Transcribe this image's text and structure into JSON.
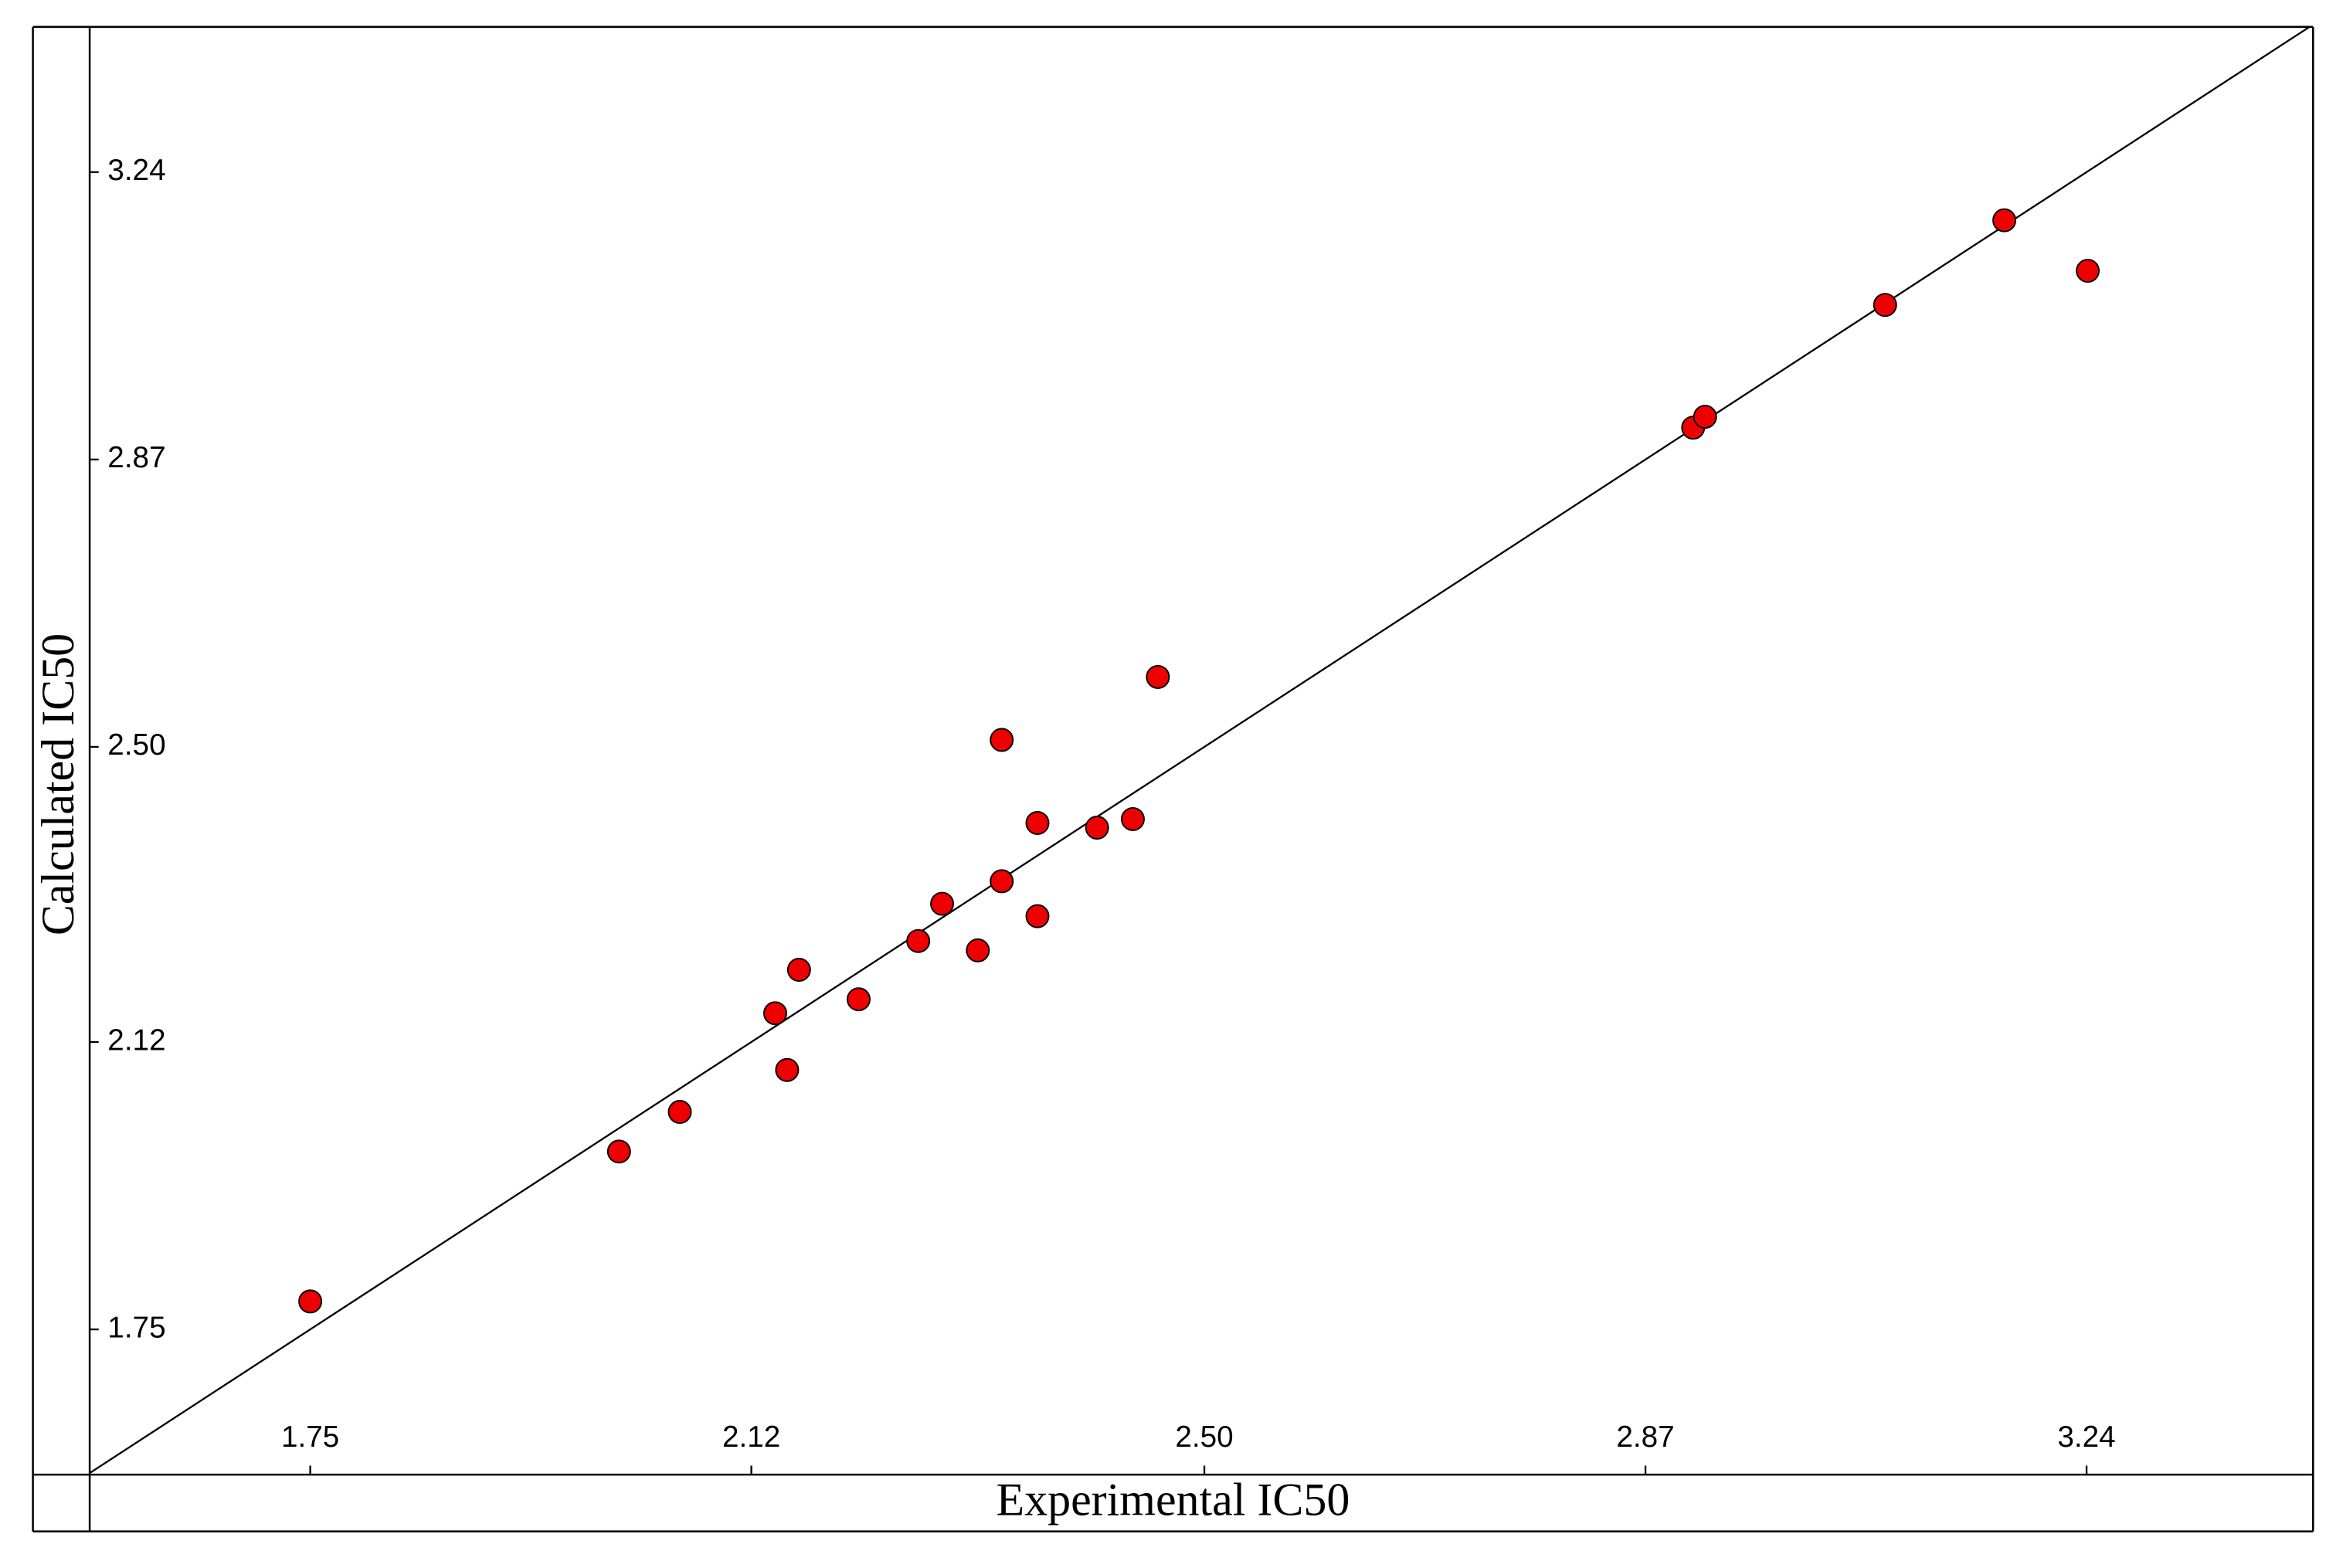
{
  "chart_data": {
    "type": "scatter",
    "x_label": "Experimental IC50",
    "y_label": "Calculated IC50",
    "x": [
      1.75,
      2.009,
      2.06,
      2.14,
      2.15,
      2.16,
      2.21,
      2.26,
      2.28,
      2.31,
      2.33,
      2.36,
      2.36,
      2.33,
      2.41,
      2.44,
      2.461,
      2.91,
      2.92,
      3.071,
      3.171,
      3.241
    ],
    "values": [
      1.786,
      1.979,
      2.03,
      2.157,
      2.084,
      2.213,
      2.175,
      2.25,
      2.298,
      2.238,
      2.327,
      2.282,
      2.402,
      2.509,
      2.396,
      2.407,
      2.59,
      2.911,
      2.925,
      3.069,
      3.178,
      3.113
    ],
    "color": "#ee0000",
    "xlim": [
      1.565,
      3.43
    ],
    "ylim": [
      1.563,
      3.427
    ],
    "xticks": [
      1.75,
      2.12,
      {
        "value": 2.5,
        "label": "2.50"
      },
      2.87,
      3.24
    ],
    "yticks": [
      1.75,
      2.12,
      {
        "value": 2.5,
        "label": "2.50"
      },
      2.87,
      3.24
    ]
  }
}
